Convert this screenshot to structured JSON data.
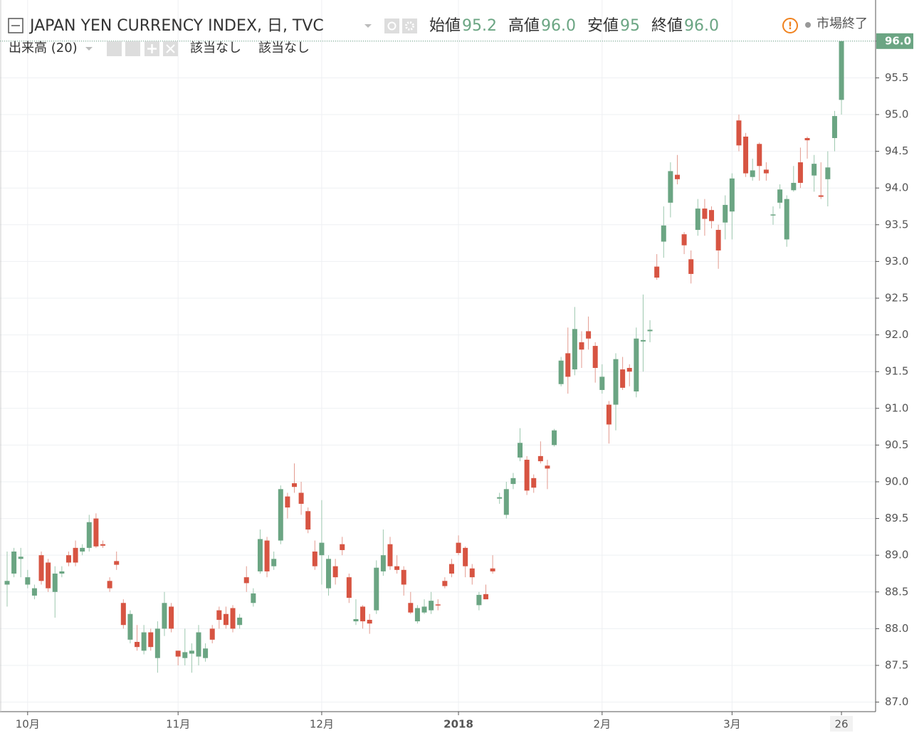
{
  "chart_data": {
    "type": "candlestick",
    "title": "JAPAN YEN CURRENCY INDEX, 日, TVC",
    "ohlc_legend": [
      {
        "name": "始値",
        "value": 95.2
      },
      {
        "name": "高値",
        "value": {
          "value": 96,
          "label": "96.0"
        }
      },
      {
        "name": "安値",
        "value": 95.0
      },
      {
        "name": "終値",
        "value": {
          "value": 96,
          "label": "96.0"
        }
      }
    ],
    "status": "市場終了",
    "volume_label": "出来高 (20)",
    "volume_values": [
      "該当なし",
      "該当なし"
    ],
    "last_price": {
      "value": 96,
      "label": "96.0"
    },
    "up_color": "#6ba583",
    "down_color": "#d75442",
    "grid": true,
    "ylim": [
      86.87,
      96.56
    ],
    "yticks": [
      {
        "value": 87,
        "label": "87.0"
      },
      87.5,
      {
        "value": 88,
        "label": "88.0"
      },
      88.5,
      {
        "value": 89,
        "label": "89.0"
      },
      89.5,
      {
        "value": 90,
        "label": "90.0"
      },
      90.5,
      {
        "value": 91,
        "label": "91.0"
      },
      91.5,
      {
        "value": 92,
        "label": "92.0"
      },
      92.5,
      {
        "value": 93,
        "label": "93.0"
      },
      93.5,
      {
        "value": 94,
        "label": "94.0"
      },
      94.5,
      {
        "value": 95,
        "label": "95.0"
      },
      95.5,
      {
        "value": 96,
        "label": "96.0"
      }
    ],
    "categories": [
      null,
      null,
      null,
      "10月",
      null,
      null,
      null,
      null,
      null,
      null,
      null,
      null,
      null,
      null,
      null,
      null,
      null,
      null,
      null,
      null,
      null,
      null,
      null,
      null,
      null,
      "11月",
      null,
      null,
      null,
      null,
      null,
      null,
      null,
      null,
      null,
      null,
      null,
      null,
      null,
      null,
      null,
      null,
      null,
      null,
      null,
      null,
      "12月",
      null,
      null,
      null,
      null,
      null,
      null,
      null,
      null,
      null,
      null,
      null,
      null,
      null,
      null,
      null,
      null,
      null,
      null,
      null,
      "2018",
      null,
      null,
      null,
      null,
      null,
      null,
      null,
      null,
      null,
      null,
      null,
      null,
      null,
      null,
      null,
      null,
      null,
      null,
      null,
      null,
      "2月",
      null,
      null,
      null,
      null,
      null,
      null,
      null,
      null,
      null,
      null,
      null,
      null,
      null,
      null,
      null,
      null,
      null,
      null,
      "3月",
      null,
      null,
      null,
      null,
      null,
      null,
      null,
      null,
      null,
      null,
      null,
      null,
      null,
      null,
      null,
      "26"
    ],
    "open": [
      88.6,
      88.75,
      88.95,
      88.6,
      88.45,
      89.0,
      88.9,
      88.5,
      88.75,
      89.0,
      89.1,
      89.05,
      89.1,
      89.5,
      89.15,
      88.65,
      88.92,
      88.35,
      87.85,
      87.82,
      87.7,
      87.95,
      87.6,
      88.0,
      88.3,
      87.7,
      87.6,
      87.66,
      87.62,
      87.6,
      88.0,
      88.25,
      88.2,
      88.28,
      88.05,
      88.7,
      88.35,
      88.78,
      89.2,
      88.85,
      89.2,
      89.8,
      89.98,
      89.85,
      89.6,
      89.05,
      89.0,
      88.55,
      88.85,
      89.15,
      88.7,
      88.1,
      88.3,
      88.12,
      88.25,
      88.78,
      89.15,
      88.85,
      88.8,
      88.35,
      88.1,
      88.22,
      88.25,
      88.33,
      88.65,
      88.88,
      89.17,
      89.1,
      88.82,
      88.32,
      88.47,
      88.82,
      89.77,
      89.55,
      89.97,
      90.33,
      90.3,
      90.05,
      90.35,
      90.22,
      90.5,
      91.33,
      91.75,
      91.53,
      91.9,
      92.05,
      91.85,
      91.25,
      91.05,
      91.05,
      91.53,
      91.55,
      91.23,
      91.91,
      92.05,
      92.93,
      93.27,
      93.8,
      94.18,
      93.37,
      93.03,
      93.43,
      93.72,
      93.7,
      93.43,
      93.53,
      93.68,
      94.92,
      94.7,
      94.15,
      94.6,
      94.25,
      93.63,
      93.8,
      93.3,
      93.97,
      94.35,
      94.68,
      94.17,
      93.9,
      94.12,
      94.68,
      95.2
    ],
    "high": [
      89.05,
      89.1,
      89.1,
      88.8,
      88.6,
      89.05,
      88.95,
      88.85,
      88.85,
      89.05,
      89.2,
      89.15,
      89.55,
      89.57,
      89.2,
      88.7,
      89.05,
      88.4,
      88.25,
      88.05,
      88.05,
      88.0,
      88.1,
      88.5,
      88.35,
      87.7,
      88.0,
      87.8,
      88.05,
      87.8,
      88.05,
      88.3,
      88.3,
      88.32,
      88.2,
      88.85,
      88.55,
      89.35,
      89.25,
      89.05,
      89.95,
      89.85,
      90.25,
      90.0,
      89.65,
      89.2,
      89.75,
      89.0,
      88.95,
      89.25,
      88.75,
      88.4,
      88.32,
      88.2,
      88.93,
      89.35,
      89.25,
      89.0,
      88.85,
      88.5,
      88.32,
      88.4,
      88.5,
      88.4,
      88.7,
      88.95,
      89.27,
      89.12,
      88.88,
      88.5,
      88.6,
      89.0,
      89.85,
      90.0,
      90.12,
      90.73,
      90.35,
      90.1,
      90.55,
      90.3,
      90.72,
      91.7,
      92.1,
      92.38,
      92.05,
      92.25,
      91.9,
      91.6,
      91.1,
      91.75,
      91.7,
      91.6,
      92.1,
      92.55,
      92.2,
      93.1,
      93.75,
      94.35,
      94.45,
      93.4,
      93.15,
      93.85,
      93.85,
      93.75,
      93.5,
      93.9,
      94.2,
      95.0,
      94.75,
      94.4,
      94.62,
      94.35,
      93.75,
      94.05,
      93.9,
      94.3,
      94.55,
      94.7,
      94.45,
      94.35,
      94.5,
      95.05,
      96.0
    ],
    "low": [
      88.3,
      88.7,
      88.7,
      88.55,
      88.4,
      88.6,
      88.5,
      88.15,
      88.7,
      88.85,
      88.85,
      89.0,
      89.05,
      89.1,
      89.1,
      88.5,
      88.8,
      88.0,
      87.8,
      87.7,
      87.65,
      87.7,
      87.4,
      87.9,
      87.95,
      87.5,
      87.5,
      87.4,
      87.5,
      87.55,
      87.8,
      88.0,
      88.0,
      87.95,
      88.0,
      88.5,
      88.3,
      88.75,
      88.7,
      88.8,
      89.15,
      89.5,
      89.85,
      89.55,
      89.3,
      88.8,
      88.6,
      88.45,
      88.6,
      89.0,
      88.35,
      88.05,
      88.0,
      87.93,
      88.2,
      88.72,
      88.8,
      88.75,
      88.45,
      88.2,
      88.07,
      88.2,
      88.2,
      88.25,
      88.55,
      88.7,
      89.0,
      88.7,
      88.6,
      88.25,
      88.4,
      88.75,
      89.7,
      89.5,
      89.9,
      90.28,
      89.82,
      89.85,
      90.25,
      89.9,
      90.48,
      91.3,
      91.2,
      91.45,
      91.55,
      91.8,
      91.35,
      91.2,
      90.52,
      90.7,
      91.25,
      91.3,
      91.15,
      91.5,
      91.9,
      92.75,
      93.05,
      93.6,
      94.05,
      93.1,
      92.7,
      93.35,
      93.35,
      93.45,
      92.9,
      93.3,
      93.3,
      94.5,
      94.15,
      94.1,
      94.1,
      94.1,
      93.5,
      93.72,
      93.2,
      93.95,
      94.0,
      94.4,
      93.95,
      93.85,
      93.75,
      94.5,
      95.0
    ],
    "close": [
      88.65,
      89.05,
      88.98,
      88.7,
      88.55,
      88.65,
      88.55,
      88.75,
      88.78,
      88.9,
      88.9,
      89.1,
      89.45,
      89.12,
      89.13,
      88.55,
      88.87,
      88.05,
      88.2,
      87.75,
      87.95,
      87.75,
      88.0,
      88.35,
      88.0,
      87.62,
      87.68,
      87.7,
      87.95,
      87.73,
      87.85,
      88.12,
      88.05,
      88.0,
      88.15,
      88.62,
      88.48,
      89.22,
      88.78,
      88.95,
      89.9,
      89.65,
      89.93,
      89.7,
      89.35,
      88.85,
      89.17,
      88.95,
      88.7,
      89.07,
      88.42,
      88.13,
      88.1,
      88.07,
      88.83,
      89.0,
      88.85,
      88.8,
      88.6,
      88.22,
      88.28,
      88.3,
      88.38,
      88.32,
      88.58,
      88.75,
      89.03,
      88.85,
      88.7,
      88.46,
      88.4,
      88.78,
      89.79,
      89.9,
      90.05,
      90.53,
      89.88,
      89.92,
      90.28,
      90.18,
      90.7,
      91.65,
      91.43,
      92.08,
      91.8,
      91.95,
      91.55,
      91.43,
      90.78,
      91.67,
      91.28,
      91.5,
      91.95,
      91.93,
      92.07,
      92.78,
      93.49,
      94.23,
      94.12,
      93.22,
      92.83,
      93.72,
      93.58,
      93.55,
      93.15,
      93.77,
      94.13,
      94.58,
      94.2,
      94.24,
      94.3,
      94.2,
      93.64,
      93.98,
      93.85,
      94.07,
      94.07,
      94.65,
      94.33,
      93.88,
      94.28,
      94.98,
      96.0
    ]
  }
}
